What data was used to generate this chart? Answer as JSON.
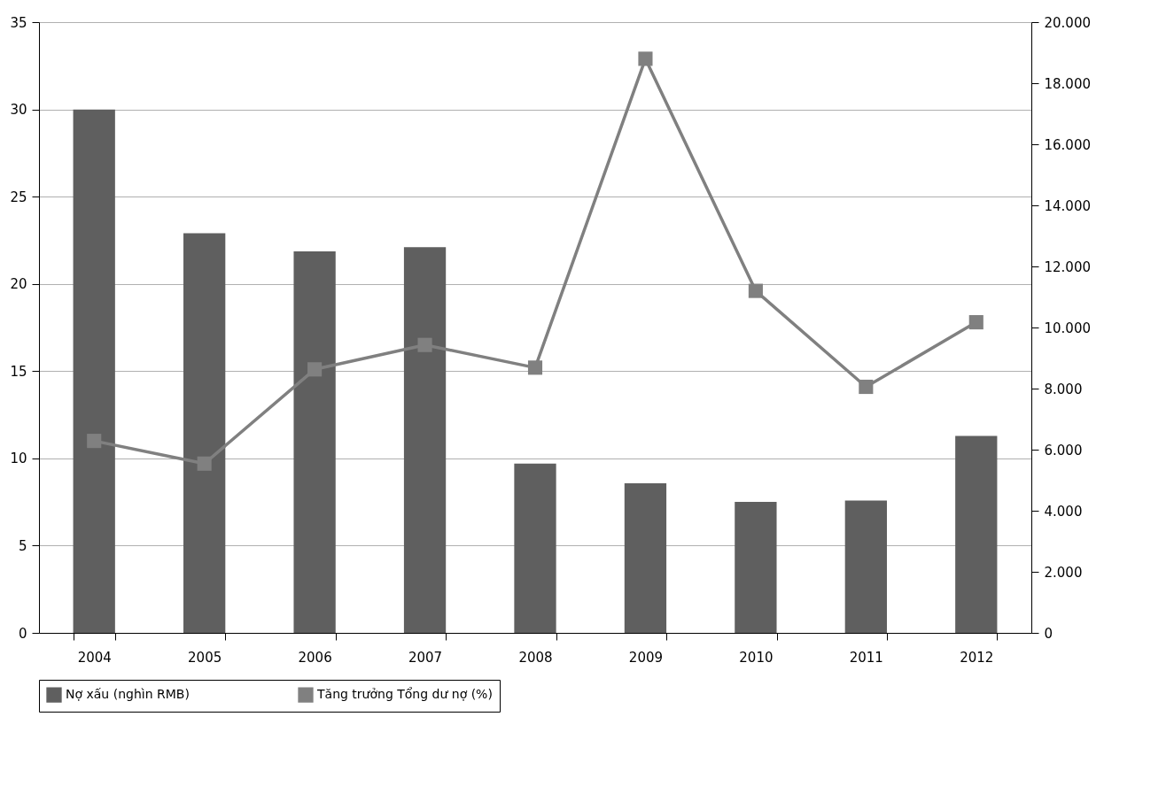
{
  "chart_data": {
    "type": "bar",
    "categories": [
      "2004",
      "2005",
      "2006",
      "2007",
      "2008",
      "2009",
      "2010",
      "2011",
      "2012"
    ],
    "series": [
      {
        "name": "Nợ xấu (nghìn RMB)",
        "axis": "y2",
        "color": "#5f5f5f",
        "values": [
          17140,
          13090,
          12490,
          12630,
          5540,
          4900,
          4290,
          4330,
          6450
        ]
      },
      {
        "name": "Tăng trưởng Tổng dư nợ (%)",
        "type": "line",
        "color": "#808080",
        "marker": "square",
        "values": [
          11.0,
          9.7,
          15.1,
          16.5,
          15.2,
          32.9,
          19.6,
          14.1,
          17.8
        ]
      }
    ],
    "ylim": [
      0,
      35
    ],
    "yticks": [
      0,
      5,
      10,
      15,
      20,
      25,
      30,
      35
    ],
    "y2lim": [
      0,
      20000
    ],
    "y2ticks": [
      0,
      {
        "value": 2000,
        "label": "2.000"
      },
      {
        "value": 4000,
        "label": "4.000"
      },
      {
        "value": 6000,
        "label": "6.000"
      },
      {
        "value": 8000,
        "label": "8.000"
      },
      {
        "value": 10000,
        "label": "10.000"
      },
      {
        "value": 12000,
        "label": "12.000"
      },
      {
        "value": 14000,
        "label": "14.000"
      },
      {
        "value": 16000,
        "label": "16.000"
      },
      {
        "value": 18000,
        "label": "18.000"
      },
      {
        "value": 20000,
        "label": "20.000"
      }
    ],
    "grid": "y",
    "legend": "bottom"
  }
}
